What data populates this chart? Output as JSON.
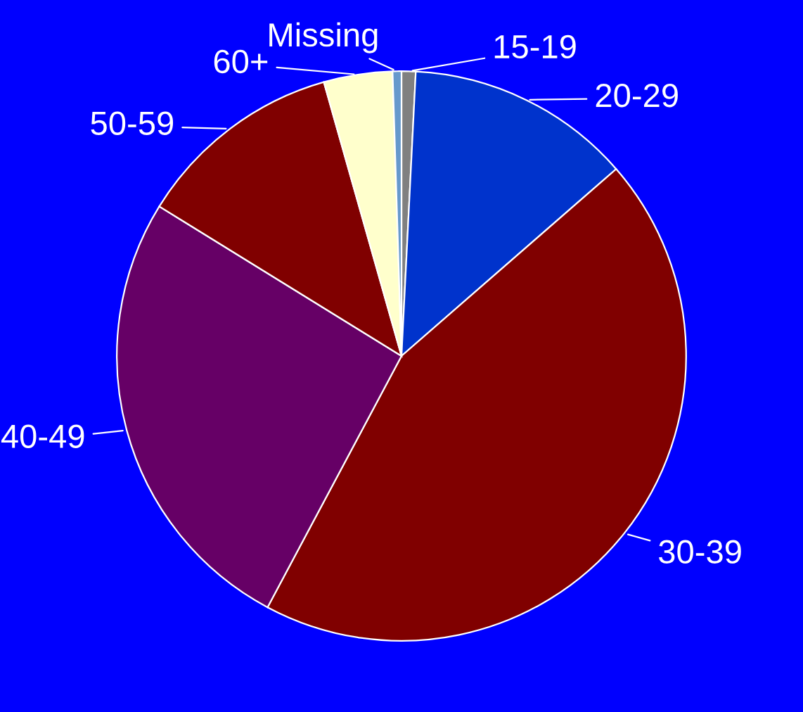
{
  "chart_data": {
    "type": "pie",
    "categories": [
      "15-19",
      "20-29",
      "30-39",
      "40-49",
      "50-59",
      "60+",
      "Missing"
    ],
    "values": [
      0.8,
      12.8,
      44.2,
      26.0,
      11.8,
      3.9,
      0.5
    ],
    "colors": [
      "#808080",
      "#0033cc",
      "#800000",
      "#660066",
      "#800000",
      "#ffffcc",
      "#6699cc"
    ],
    "legend": false
  }
}
